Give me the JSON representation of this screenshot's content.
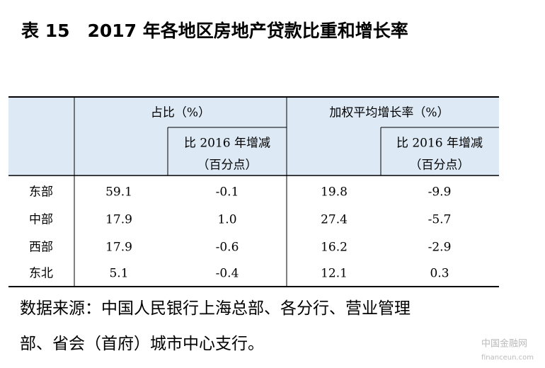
{
  "title": "表 15　2017 年各地区房地产贷款比重和增长率",
  "table": {
    "header": {
      "groups": [
        "占比（%）",
        "加权平均增长率（%）"
      ],
      "sub_columns": [
        [
          "比 2016 年增减",
          "（百分点）"
        ],
        [
          "比 2016 年增减",
          "（百分点）"
        ]
      ]
    },
    "rows": [
      [
        "东部",
        "59.1",
        "-0.1",
        "19.8",
        "-9.9"
      ],
      [
        "中部",
        "17.9",
        "1.0",
        "27.4",
        "-5.7"
      ],
      [
        "西部",
        "17.9",
        "-0.6",
        "16.2",
        "-2.9"
      ],
      [
        "东北",
        "5.1",
        "-0.4",
        "12.1",
        "0.3"
      ]
    ]
  },
  "source": [
    "数据来源：中国人民银行上海总部、各分行、营业管理",
    "部、省会（首府）城市中心支行。"
  ],
  "watermark": [
    "中国金融网",
    "financeun.com"
  ]
}
